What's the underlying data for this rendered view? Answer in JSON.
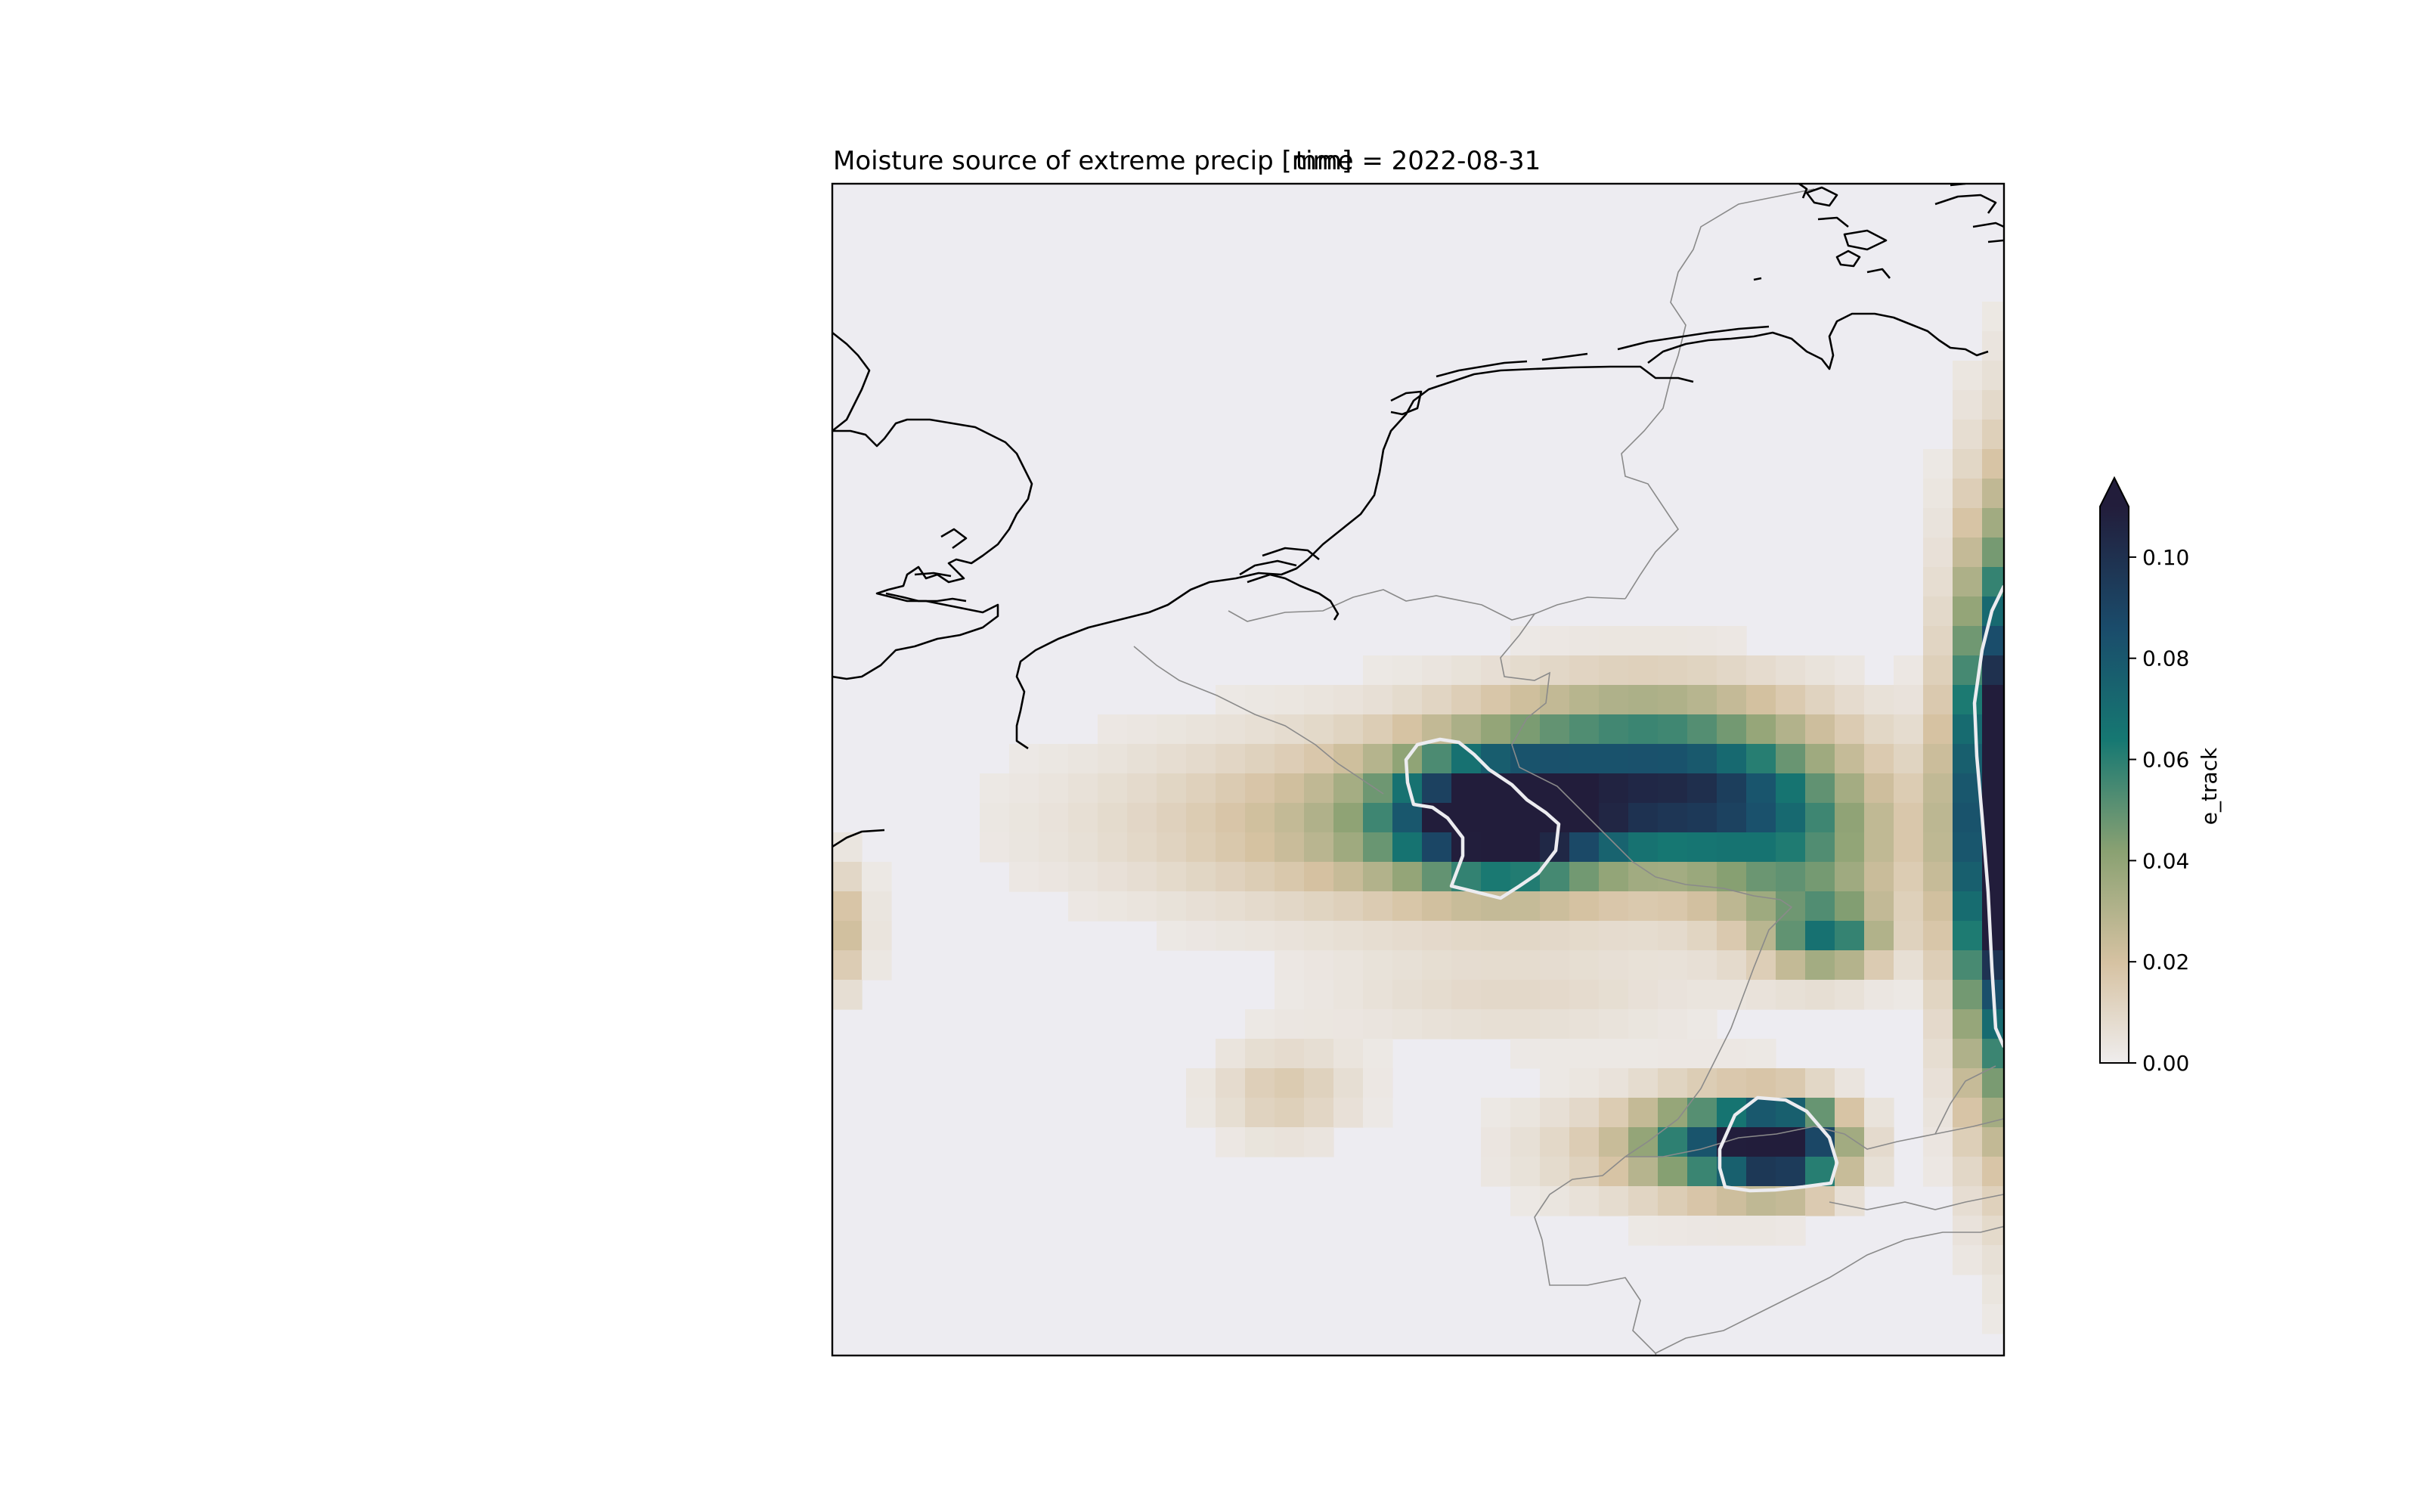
{
  "titles": {
    "left": "Moisture source of extreme precip [mm]",
    "center": "time = 2022-08-31"
  },
  "colorbar": {
    "label": "e_track",
    "ticks": [
      "0.00",
      "0.02",
      "0.04",
      "0.06",
      "0.08",
      "0.10"
    ],
    "tick_values": [
      0.0,
      0.02,
      0.04,
      0.06,
      0.08,
      0.1
    ],
    "vmin": 0.0,
    "vmax": 0.11,
    "extend": "max",
    "colormap": [
      "#efeded",
      "#d6c2a2",
      "#8aa172",
      "#167872",
      "#1a4c6b",
      "#221d3b"
    ]
  },
  "colors": {
    "ocean_background": "#edecf1",
    "coastline": "#000000",
    "border": "#8a8a8a",
    "contour": "#ececf0"
  },
  "map": {
    "features": [
      "coastline",
      "country-borders",
      "source-region-contour"
    ],
    "field": "e_track"
  }
}
